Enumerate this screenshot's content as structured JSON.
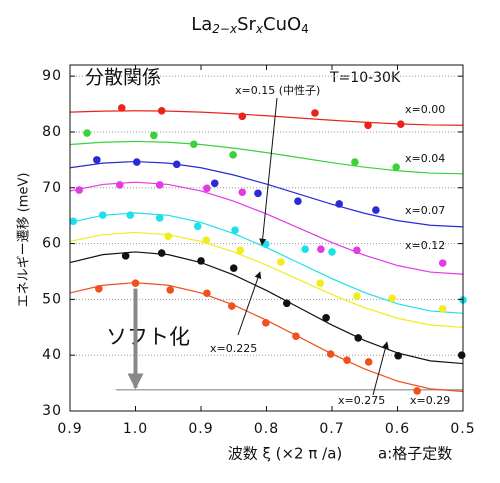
{
  "chart_data": {
    "type": "line",
    "title_parts": [
      "La",
      "2−x",
      "Sr",
      "x",
      "CuO",
      "4"
    ],
    "x_label": "波数 ξ (×2 π /a)",
    "x_note": "a:格子定数",
    "y_label": "エネルギー遷移 (meV)",
    "annotations": [
      "分散関係",
      "T=10-30K",
      "ソフト化"
    ],
    "xlim": [
      0.9,
      1.5
    ],
    "xticks": [
      0.9,
      {
        "value": 1,
        "label": "1.0"
      },
      {
        "value": 1.1,
        "label": "0.9"
      },
      {
        "value": 1.2,
        "label": "0.8"
      },
      {
        "value": 1.3,
        "label": "0.7"
      },
      {
        "value": 1.4,
        "label": "0.6"
      },
      {
        "value": 1.5,
        "label": "0.5"
      }
    ],
    "ylim": [
      30,
      92
    ],
    "yticks": [
      30,
      40,
      50,
      60,
      70,
      80,
      90
    ],
    "grid": true,
    "x": [
      0.9,
      0.95,
      1.0,
      1.05,
      1.1,
      1.15,
      1.2,
      1.25,
      1.3,
      1.35,
      1.4,
      1.45,
      1.5
    ],
    "series": [
      {
        "name": "x=0.00",
        "color": "#e8241c",
        "values": [
          83.55,
          83.74,
          83.8,
          83.74,
          83.55,
          83.26,
          82.9,
          82.5,
          82.1,
          81.74,
          81.45,
          81.26,
          81.2
        ],
        "points_x": [
          0.979,
          1.04,
          1.163,
          1.274,
          1.355,
          1.405
        ],
        "points_y": [
          84.3,
          83.8,
          82.8,
          83.4,
          81.2,
          81.4
        ]
      },
      {
        "name": "x=0.04",
        "color": "#3ad13a",
        "values": [
          77.75,
          78.16,
          78.3,
          78.16,
          77.75,
          77.11,
          76.3,
          75.4,
          74.5,
          73.69,
          73.05,
          72.64,
          72.5
        ],
        "points_x": [
          0.926,
          1.028,
          1.089,
          1.149,
          1.335,
          1.398
        ],
        "points_y": [
          79.8,
          79.4,
          77.8,
          75.9,
          74.6,
          73.7
        ]
      },
      {
        "name": "x=0.07",
        "color": "#2a2ad6",
        "values": [
          73.59,
          74.42,
          74.7,
          74.42,
          73.59,
          72.29,
          70.66,
          68.85,
          67.04,
          65.41,
          64.11,
          63.28,
          63
        ],
        "points_x": [
          0.941,
          1.002,
          1.063,
          1.121,
          1.187,
          1.248,
          1.311,
          1.367
        ],
        "points_y": [
          75,
          74.6,
          74.2,
          70.8,
          69,
          67.6,
          67.1,
          66
        ]
      },
      {
        "name": "x=0.12",
        "color": "#e43ae4",
        "values": [
          69.43,
          70.6,
          71,
          70.6,
          69.43,
          67.6,
          65.31,
          62.75,
          60.19,
          57.9,
          56.07,
          54.9,
          54.5
        ],
        "points_x": [
          0.914,
          0.976,
          1.037,
          1.109,
          1.163,
          1.283,
          1.338,
          1.469
        ],
        "points_y": [
          69.6,
          70.5,
          70.5,
          69.9,
          69.2,
          59,
          58.8,
          56.5
        ]
      },
      {
        "name": "x=0.15 (中性子)",
        "color": "#1ee0ea",
        "values": [
          63.79,
          65.07,
          65.5,
          65.07,
          63.79,
          61.79,
          59.29,
          56.5,
          53.71,
          51.21,
          49.21,
          47.93,
          47.5
        ],
        "points_x": [
          0.905,
          0.95,
          0.992,
          1.037,
          1.095,
          1.152,
          1.199,
          1.259,
          1.3,
          1.5
        ],
        "points_y": [
          64,
          65.1,
          65.1,
          64.6,
          63.1,
          62.4,
          59.9,
          59,
          58.5,
          49.9
        ]
      },
      {
        "name": "x=0.225",
        "color": "#f2ec1a",
        "values": [
          60.39,
          61.59,
          62,
          61.59,
          60.39,
          58.5,
          56.14,
          53.5,
          50.87,
          48.5,
          46.62,
          45.41,
          45
        ],
        "points_x": [
          1.05,
          1.108,
          1.16,
          1.222,
          1.282,
          1.338,
          1.392,
          1.469
        ],
        "points_y": [
          61.3,
          60.6,
          58.8,
          56.7,
          52.9,
          50.6,
          50.2,
          48.3
        ]
      },
      {
        "name": "x=0.275",
        "color": "#111111",
        "values": [
          56.6,
          58.02,
          58.5,
          58.02,
          56.6,
          54.38,
          51.6,
          48.5,
          45.4,
          42.62,
          40.4,
          38.98,
          38.5
        ],
        "points_x": [
          0.985,
          1.04,
          1.1,
          1.15,
          1.231,
          1.291,
          1.34,
          1.401,
          1.498
        ],
        "points_y": [
          57.8,
          58.3,
          56.9,
          55.6,
          49.3,
          46.7,
          43.1,
          39.9,
          40
        ]
      },
      {
        "name": "x=0.29",
        "color": "#f0501e",
        "values": [
          51.15,
          52.53,
          53,
          52.53,
          51.15,
          48.98,
          46.27,
          43.25,
          40.23,
          37.52,
          35.35,
          33.97,
          33.5
        ],
        "points_x": [
          0.944,
          1.0,
          1.053,
          1.109,
          1.147,
          1.199,
          1.245,
          1.298,
          1.323,
          1.356,
          1.43
        ],
        "points_y": [
          51.9,
          52.9,
          51.7,
          51.1,
          48.8,
          45.8,
          43.4,
          40.2,
          39.1,
          38.8,
          33.6
        ]
      }
    ],
    "soft_line": {
      "x": [
        0.97,
        1.5
      ],
      "y": 33.8,
      "color": "#888888"
    }
  }
}
